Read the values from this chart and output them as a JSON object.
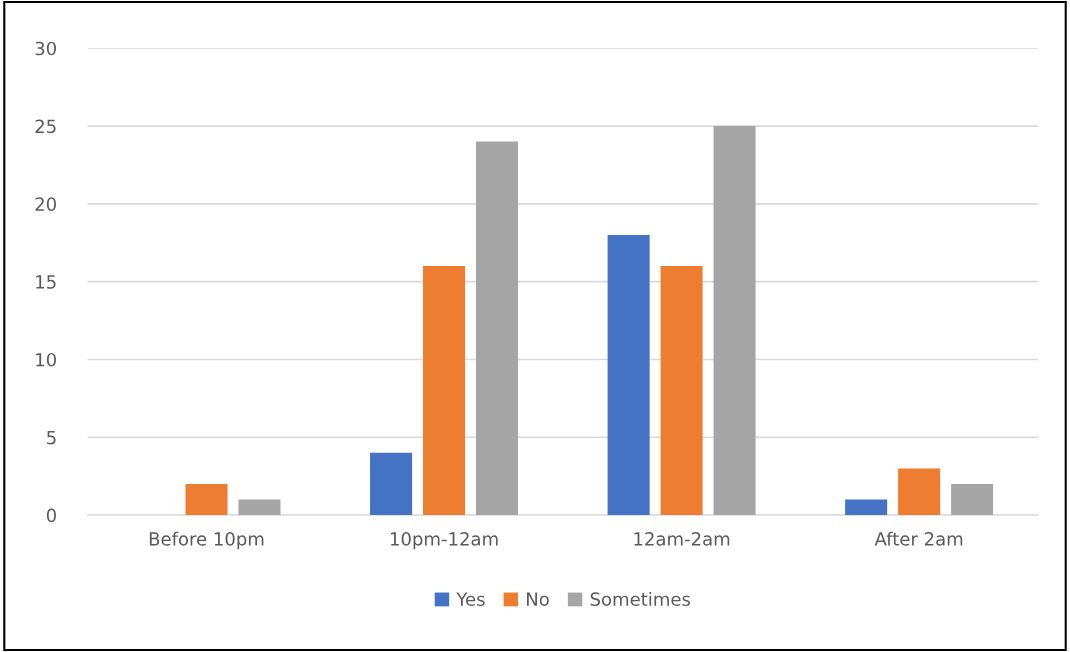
{
  "chart_data": {
    "type": "bar",
    "categories": [
      "Before 10pm",
      "10pm-12am",
      "12am-2am",
      "After 2am"
    ],
    "series": [
      {
        "name": "Yes",
        "color": "#4472c4",
        "values": [
          0,
          4,
          18,
          1
        ]
      },
      {
        "name": "No",
        "color": "#ed7d31",
        "values": [
          2,
          16,
          16,
          3
        ]
      },
      {
        "name": "Sometimes",
        "color": "#a5a5a5",
        "values": [
          1,
          24,
          25,
          2
        ]
      }
    ],
    "ylim": [
      0,
      30
    ],
    "yticks": [
      0,
      5,
      10,
      15,
      20,
      25,
      30
    ],
    "grid": "y",
    "legend": "bottom"
  }
}
